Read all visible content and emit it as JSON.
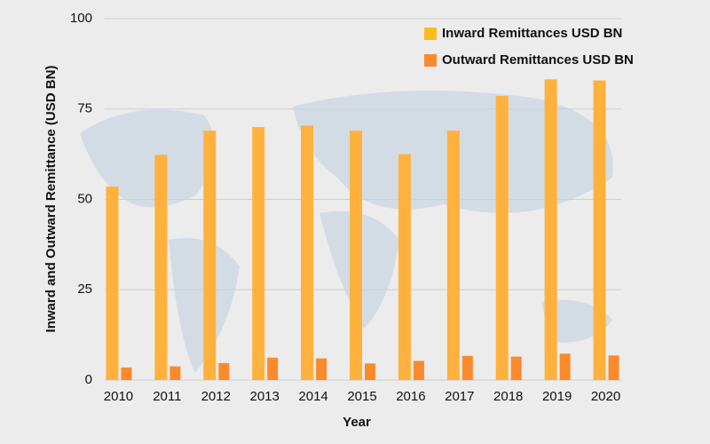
{
  "chart_data": {
    "type": "bar",
    "x_label": "Year",
    "y_label": "Inward and Outward Remittance (USD BN)",
    "categories": [
      "2010",
      "2011",
      "2012",
      "2013",
      "2014",
      "2015",
      "2016",
      "2017",
      "2018",
      "2019",
      "2020"
    ],
    "series": [
      {
        "name": "Inward Remittances USD BN",
        "color": "#ffb13d",
        "legend_color": "#fbbc1c",
        "values": [
          53.5,
          62.3,
          69,
          70,
          70.4,
          69,
          62.5,
          69,
          78.6,
          83.2,
          82.9
        ]
      },
      {
        "name": "Outward Remittances USD BN",
        "color": "#fb8a2c",
        "legend_color": "#fb8a2c",
        "values": [
          3.5,
          3.8,
          4.7,
          6.2,
          6,
          4.6,
          5.3,
          6.7,
          6.5,
          7.3,
          6.8
        ]
      }
    ],
    "ylim": [
      0,
      100
    ],
    "yticks": [
      0,
      25,
      50,
      75,
      100
    ],
    "grid": true,
    "legend": "top-right"
  }
}
